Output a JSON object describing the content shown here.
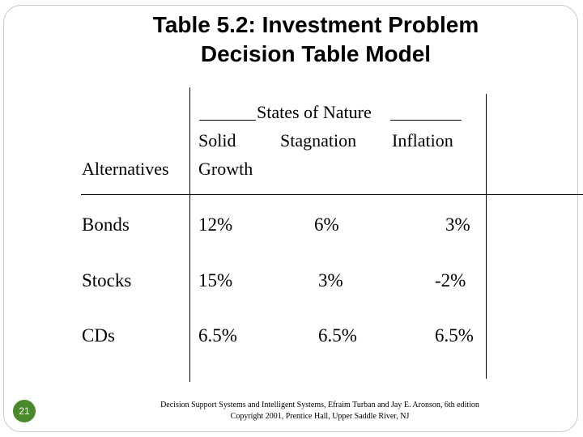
{
  "title": {
    "line1": "Table 5.2: Investment Problem",
    "line2": "Decision Table Model"
  },
  "table": {
    "states_header": "States of Nature",
    "row_header": "Alternatives",
    "columns": [
      {
        "line1": "Solid",
        "line2": "Growth"
      },
      {
        "line1": "Stagnation",
        "line2": ""
      },
      {
        "line1": "Inflation",
        "line2": ""
      }
    ],
    "rows": [
      {
        "name": "Bonds",
        "values": [
          "12%",
          "6%",
          "3%"
        ]
      },
      {
        "name": "Stocks",
        "values": [
          "15%",
          "3%",
          "-2%"
        ]
      },
      {
        "name": "CDs",
        "values": [
          "6.5%",
          "6.5%",
          "6.5%"
        ]
      }
    ]
  },
  "slide_number": "21",
  "footer": {
    "line1": "Decision Support Systems and Intelligent Systems, Efraim Turban and Jay E. Aronson, 6th edition",
    "line2": "Copyright 2001, Prentice Hall, Upper Saddle River, NJ"
  }
}
